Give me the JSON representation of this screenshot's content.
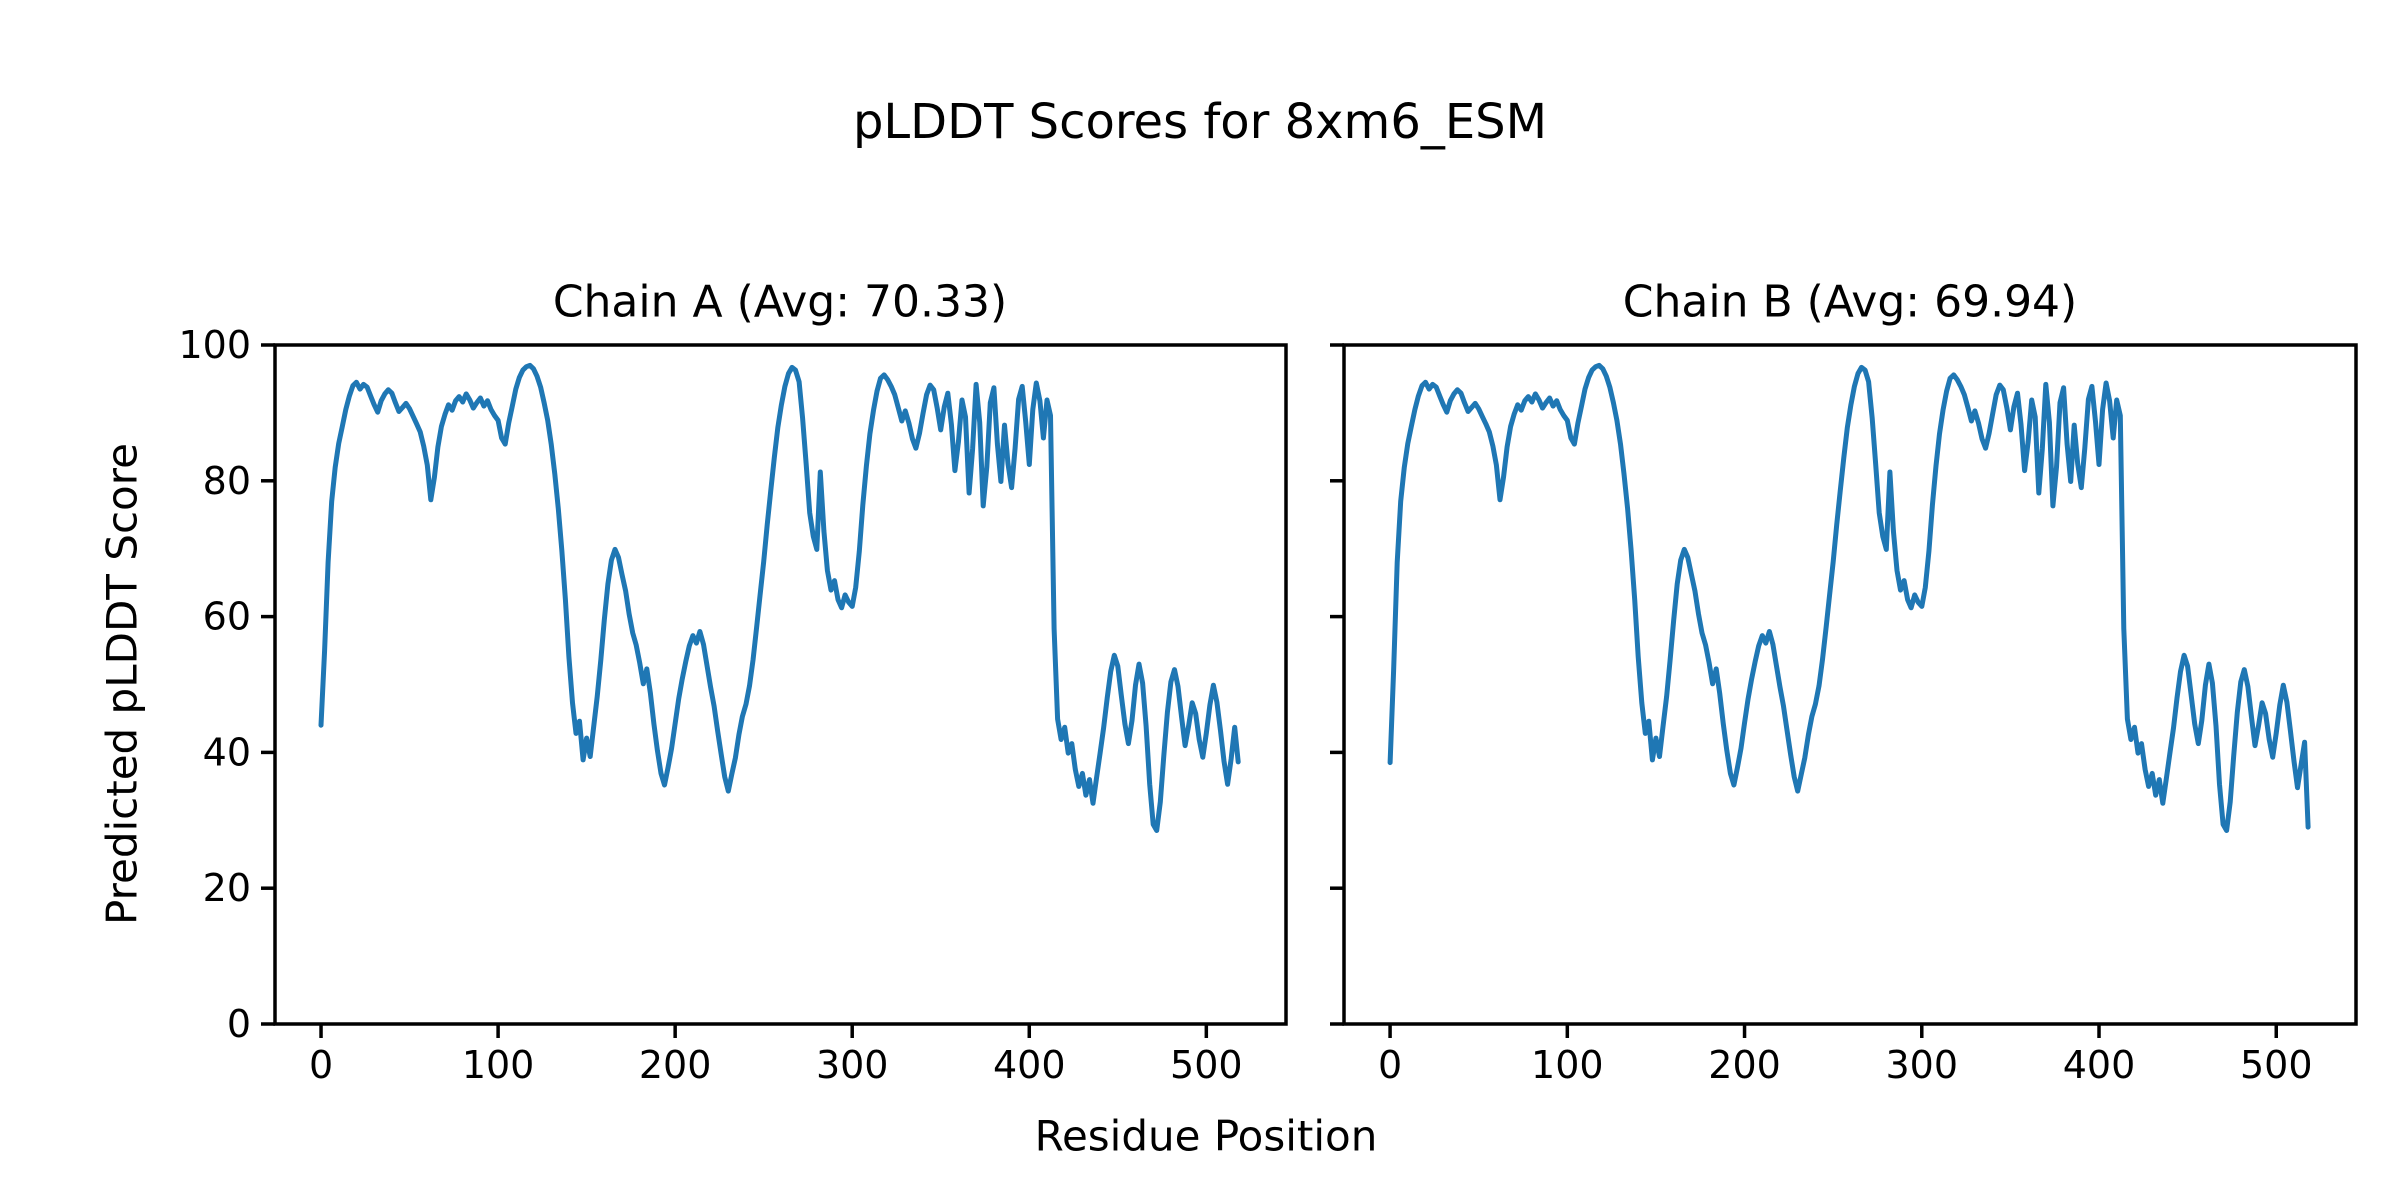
{
  "figure": {
    "suptitle": "pLDDT Scores for 8xm6_ESM",
    "background_color": "#ffffff",
    "line_color": "#1f77b4",
    "axis_color": "#000000"
  },
  "shared": {
    "xlabel": "Residue Position",
    "ylabel": "Predicted pLDDT Score"
  },
  "chart_data": [
    {
      "type": "line",
      "title": "Chain A (Avg: 70.33)",
      "avg_label": "70.33",
      "series_name": "Chain A pLDDT",
      "line_color": "#1f77b4",
      "xlim": [
        -26,
        545
      ],
      "ylim": [
        0,
        100
      ],
      "xticks": [
        0,
        100,
        200,
        300,
        400,
        500
      ],
      "yticks": [
        0,
        20,
        40,
        60,
        80,
        100
      ],
      "show_ytick_labels": true,
      "x_start": 0,
      "x_step": 2,
      "values": [
        44.0,
        55.0,
        68.0,
        77.0,
        82.0,
        85.5,
        88.0,
        90.5,
        92.5,
        94.0,
        94.5,
        93.5,
        94.2,
        93.8,
        92.5,
        91.2,
        90.1,
        91.8,
        92.8,
        93.4,
        92.9,
        91.5,
        90.2,
        90.8,
        91.4,
        90.6,
        89.5,
        88.4,
        87.2,
        85.1,
        82.3,
        77.2,
        80.5,
        85.0,
        88.0,
        89.8,
        91.2,
        90.4,
        91.8,
        92.4,
        91.6,
        92.8,
        91.9,
        90.7,
        91.5,
        92.2,
        91.0,
        91.8,
        90.5,
        89.6,
        88.9,
        86.3,
        85.4,
        88.5,
        91.0,
        93.5,
        95.2,
        96.3,
        96.8,
        97.0,
        96.5,
        95.4,
        93.8,
        91.5,
        88.9,
        85.4,
        81.0,
        75.9,
        69.8,
        62.5,
        54.1,
        47.3,
        42.8,
        44.6,
        38.9,
        42.1,
        39.4,
        43.8,
        48.2,
        53.6,
        59.5,
        64.8,
        68.3,
        69.9,
        68.7,
        66.2,
        63.8,
        60.4,
        57.6,
        55.8,
        53.2,
        50.1,
        52.3,
        48.7,
        44.2,
        40.3,
        36.9,
        35.2,
        37.8,
        40.6,
        44.3,
        47.9,
        50.8,
        53.4,
        55.7,
        57.2,
        56.1,
        57.8,
        55.9,
        52.8,
        49.6,
        46.8,
        43.2,
        39.7,
        36.4,
        34.3,
        36.8,
        39.2,
        42.6,
        45.3,
        47.1,
        49.8,
        53.7,
        58.4,
        63.2,
        68.1,
        73.5,
        78.6,
        83.4,
        87.8,
        91.2,
        93.9,
        95.8,
        96.7,
        96.3,
        94.6,
        89.2,
        82.4,
        75.3,
        71.8,
        69.9,
        81.3,
        72.6,
        66.8,
        63.9,
        65.3,
        62.5,
        61.3,
        63.2,
        62.1,
        61.5,
        64.3,
        69.6,
        76.4,
        82.2,
        86.9,
        90.4,
        93.2,
        95.1,
        95.6,
        94.9,
        93.9,
        92.7,
        90.8,
        88.8,
        90.3,
        88.5,
        86.2,
        84.8,
        87.0,
        89.9,
        92.7,
        94.1,
        93.4,
        90.7,
        87.5,
        90.9,
        92.9,
        88.3,
        81.5,
        85.7,
        91.9,
        89.4,
        78.2,
        84.7,
        94.2,
        88.6,
        76.3,
        82.0,
        91.5,
        93.7,
        85.4,
        79.9,
        88.2,
        82.5,
        79.0,
        84.8,
        92.0,
        93.9,
        88.7,
        82.4,
        90.5,
        94.4,
        91.8,
        86.3,
        91.9,
        89.6,
        58.2,
        44.9,
        41.9,
        43.7,
        39.9,
        41.3,
        37.5,
        35.0,
        36.9,
        33.7,
        36.0,
        32.5,
        36.2,
        39.9,
        43.6,
        48.0,
        51.9,
        54.3,
        52.7,
        48.4,
        44.2,
        41.3,
        44.7,
        49.9,
        53.0,
        50.2,
        43.9,
        35.3,
        29.4,
        28.5,
        32.7,
        39.5,
        45.9,
        50.4,
        52.2,
        49.7,
        45.3,
        41.0,
        43.9,
        47.3,
        45.7,
        41.9,
        39.3,
        42.8,
        47.0,
        49.9,
        47.4,
        43.2,
        38.7,
        35.3,
        39.0,
        43.7,
        38.6
      ]
    },
    {
      "type": "line",
      "title": "Chain B (Avg: 69.94)",
      "avg_label": "69.94",
      "series_name": "Chain B pLDDT",
      "line_color": "#1f77b4",
      "xlim": [
        -26,
        545
      ],
      "ylim": [
        0,
        100
      ],
      "xticks": [
        0,
        100,
        200,
        300,
        400,
        500
      ],
      "yticks": [
        0,
        20,
        40,
        60,
        80,
        100
      ],
      "show_ytick_labels": false,
      "x_start": 0,
      "x_step": 2,
      "values": [
        38.5,
        52.0,
        68.0,
        77.0,
        82.0,
        85.5,
        88.0,
        90.5,
        92.5,
        94.0,
        94.5,
        93.5,
        94.2,
        93.8,
        92.5,
        91.2,
        90.1,
        91.8,
        92.8,
        93.4,
        92.9,
        91.5,
        90.2,
        90.8,
        91.4,
        90.6,
        89.5,
        88.4,
        87.2,
        85.1,
        82.3,
        77.2,
        80.5,
        85.0,
        88.0,
        89.8,
        91.2,
        90.4,
        91.8,
        92.4,
        91.6,
        92.8,
        91.9,
        90.7,
        91.5,
        92.2,
        91.0,
        91.8,
        90.5,
        89.6,
        88.9,
        86.3,
        85.4,
        88.5,
        91.0,
        93.5,
        95.2,
        96.3,
        96.8,
        97.0,
        96.5,
        95.4,
        93.8,
        91.5,
        88.9,
        85.4,
        81.0,
        75.9,
        69.8,
        62.5,
        54.1,
        47.3,
        42.8,
        44.6,
        38.9,
        42.1,
        39.4,
        43.8,
        48.2,
        53.6,
        59.5,
        64.8,
        68.3,
        69.9,
        68.7,
        66.2,
        63.8,
        60.4,
        57.6,
        55.8,
        53.2,
        50.1,
        52.3,
        48.7,
        44.2,
        40.3,
        36.9,
        35.2,
        37.8,
        40.6,
        44.3,
        47.9,
        50.8,
        53.4,
        55.7,
        57.2,
        56.1,
        57.8,
        55.9,
        52.8,
        49.6,
        46.8,
        43.2,
        39.7,
        36.4,
        34.3,
        36.8,
        39.2,
        42.6,
        45.3,
        47.1,
        49.8,
        53.7,
        58.4,
        63.2,
        68.1,
        73.5,
        78.6,
        83.4,
        87.8,
        91.2,
        93.9,
        95.8,
        96.7,
        96.3,
        94.6,
        89.2,
        82.4,
        75.3,
        71.8,
        69.9,
        81.3,
        72.6,
        66.8,
        63.9,
        65.3,
        62.5,
        61.3,
        63.2,
        62.1,
        61.5,
        64.3,
        69.6,
        76.4,
        82.2,
        86.9,
        90.4,
        93.2,
        95.1,
        95.6,
        94.9,
        93.9,
        92.7,
        90.8,
        88.8,
        90.3,
        88.5,
        86.2,
        84.8,
        87.0,
        89.9,
        92.7,
        94.1,
        93.4,
        90.7,
        87.5,
        90.9,
        92.9,
        88.3,
        81.5,
        85.7,
        91.9,
        89.4,
        78.2,
        84.7,
        94.2,
        88.6,
        76.3,
        82.0,
        91.5,
        93.7,
        85.4,
        79.9,
        88.2,
        82.5,
        79.0,
        84.8,
        92.0,
        93.9,
        88.7,
        82.4,
        90.5,
        94.4,
        91.8,
        86.3,
        91.9,
        89.6,
        58.2,
        44.9,
        41.9,
        43.7,
        39.9,
        41.3,
        37.5,
        35.0,
        36.9,
        33.7,
        36.0,
        32.5,
        36.2,
        39.9,
        43.6,
        48.0,
        51.9,
        54.3,
        52.7,
        48.4,
        44.2,
        41.3,
        44.7,
        49.9,
        53.0,
        50.2,
        43.9,
        35.3,
        29.4,
        28.5,
        32.7,
        39.5,
        45.9,
        50.4,
        52.2,
        49.7,
        45.3,
        41.0,
        43.9,
        47.3,
        45.7,
        41.9,
        39.3,
        42.8,
        47.0,
        49.9,
        47.4,
        43.2,
        38.7,
        34.8,
        38.2,
        41.5,
        29.0
      ]
    }
  ]
}
